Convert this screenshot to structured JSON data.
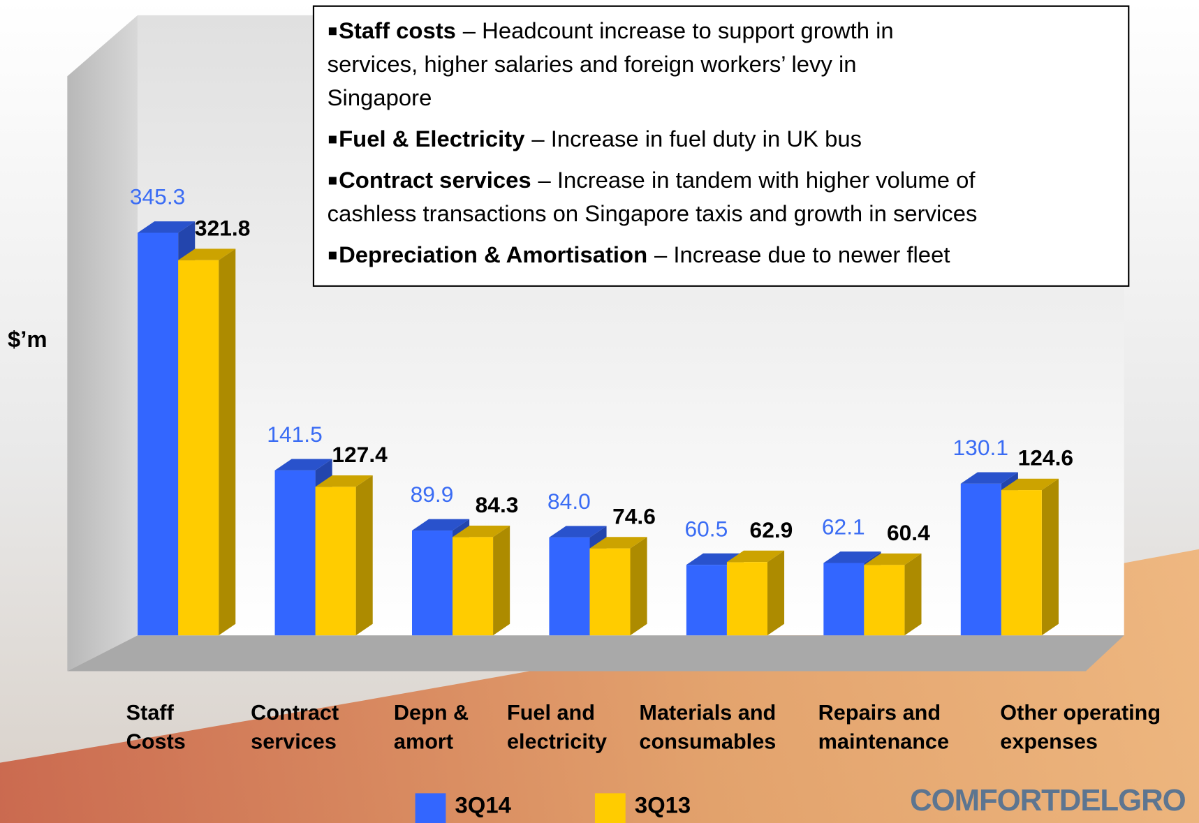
{
  "chart_data": {
    "type": "bar",
    "y_label": "$’m",
    "categories": [
      [
        "Staff",
        "Costs"
      ],
      [
        "Contract",
        "services"
      ],
      [
        "Depn &",
        "amort"
      ],
      [
        "Fuel and",
        "electricity"
      ],
      [
        "Materials and",
        "consumables"
      ],
      [
        "Repairs and",
        "maintenance"
      ],
      [
        "Other operating",
        "expenses"
      ]
    ],
    "series": [
      {
        "name": "3Q14",
        "color": "#3366ff",
        "label_color": "#3a6cf4",
        "values": [
          345.3,
          141.5,
          89.9,
          84.0,
          60.5,
          62.1,
          130.1
        ],
        "value_labels": [
          "345.3",
          "141.5",
          "89.9",
          "84.0",
          "60.5",
          "62.1",
          "130.1"
        ]
      },
      {
        "name": "3Q13",
        "color": "#ffcc00",
        "label_color": "#000000",
        "values": [
          321.8,
          127.4,
          84.3,
          74.6,
          62.9,
          60.4,
          124.6
        ],
        "value_labels": [
          "321.8",
          "127.4",
          "84.3",
          "74.6",
          "62.9",
          "60.4",
          "124.6"
        ]
      }
    ],
    "ylim": [
      0,
      350
    ]
  },
  "notes": [
    {
      "term": "Staff costs",
      "lines": [
        "– Headcount increase to support growth in",
        "services, higher salaries and foreign workers’ levy in",
        "Singapore"
      ]
    },
    {
      "term": "Fuel & Electricity",
      "lines": [
        "– Increase in fuel duty in UK bus"
      ]
    },
    {
      "term": "Contract services",
      "lines": [
        "– Increase in tandem with higher volume of",
        "cashless transactions on Singapore taxis and growth in services"
      ]
    },
    {
      "term": "Depreciation & Amortisation",
      "lines": [
        "– Increase due to newer fleet"
      ]
    }
  ],
  "logo": "COMFORTDELGRO"
}
